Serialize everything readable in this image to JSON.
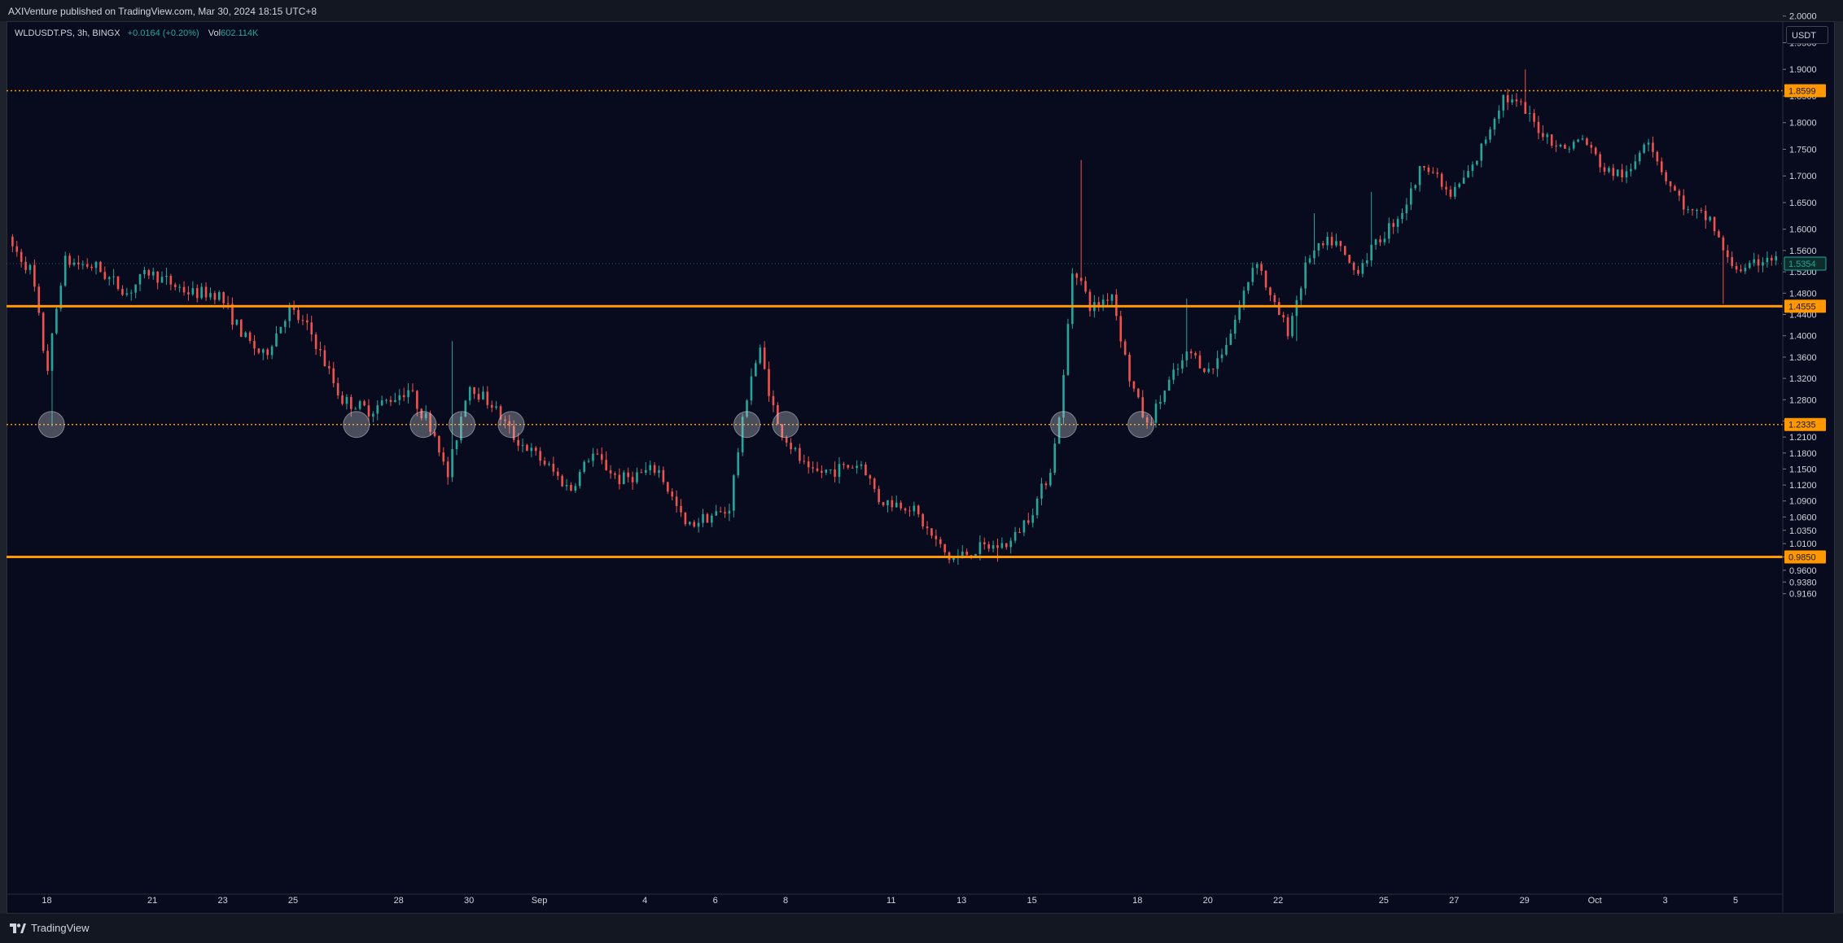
{
  "header": {
    "published_text": "AXIVenture published on TradingView.com, Mar 30, 2024 18:15 UTC+8"
  },
  "legend": {
    "symbol": "WLDUSDT.PS, 3h, BINGX",
    "change": "+0.0164 (+0.20%)",
    "vol_label": "Vol",
    "vol_value": "602.114K"
  },
  "price_scale": {
    "currency": "USDT"
  },
  "footer": {
    "brand": "TradingView"
  },
  "colors": {
    "up": "#26a69a",
    "down": "#ef5350",
    "level": "#ff9800",
    "background": "#070b1d"
  },
  "chart_data": {
    "type": "candlestick",
    "title": "",
    "xlabel": "",
    "ylabel": "",
    "ylim": [
      0.9,
      2.02
    ],
    "y_ticks": [
      "2.0000",
      "1.9500",
      "1.9000",
      "1.8500",
      "1.8000",
      "1.7500",
      "1.7000",
      "1.6500",
      "1.6000",
      "1.5600",
      "1.5200",
      "1.4800",
      "1.4400",
      "1.4000",
      "1.3600",
      "1.3200",
      "1.2800",
      "1.2400",
      "1.2100",
      "1.1800",
      "1.1500",
      "1.1200",
      "1.0900",
      "1.0600",
      "1.0350",
      "1.0100",
      "0.9850",
      "0.9600",
      "0.9380",
      "0.9160"
    ],
    "x_ticks": [
      "18",
      "21",
      "23",
      "25",
      "28",
      "30",
      "Sep",
      "4",
      "6",
      "8",
      "11",
      "13",
      "15",
      "18",
      "20",
      "22",
      "25",
      "27",
      "29",
      "Oct",
      "3",
      "5"
    ],
    "x_tick_day_index": [
      0,
      3,
      5,
      7,
      10,
      12,
      14,
      17,
      19,
      21,
      24,
      26,
      28,
      31,
      33,
      35,
      38,
      40,
      42,
      44,
      46,
      48
    ],
    "day_range": [
      -1.1,
      49.3
    ],
    "horizontal_levels": [
      {
        "value": 1.8599,
        "label": "1.8599",
        "style": "dotted"
      },
      {
        "value": 1.4555,
        "label": "1.4555",
        "style": "solid"
      },
      {
        "value": 1.2335,
        "label": "1.2335",
        "style": "dotted"
      },
      {
        "value": 0.985,
        "label": "0.9850",
        "style": "solid"
      }
    ],
    "last_price": {
      "value": 1.5354,
      "label": "1.5354"
    },
    "touch_markers_day": [
      0.13,
      8.8,
      10.7,
      11.8,
      13.2,
      19.9,
      21.0,
      28.9,
      31.1
    ],
    "touch_markers_price": 1.2335,
    "price_path": [
      {
        "day": -1.0,
        "price": 1.58
      },
      {
        "day": -0.3,
        "price": 1.52
      },
      {
        "day": 0.13,
        "price": 1.33
      },
      {
        "day": 0.6,
        "price": 1.54
      },
      {
        "day": 1.5,
        "price": 1.53
      },
      {
        "day": 2.4,
        "price": 1.48
      },
      {
        "day": 3.0,
        "price": 1.52
      },
      {
        "day": 4.2,
        "price": 1.48
      },
      {
        "day": 5.0,
        "price": 1.48
      },
      {
        "day": 5.7,
        "price": 1.4
      },
      {
        "day": 6.3,
        "price": 1.36
      },
      {
        "day": 7.0,
        "price": 1.45
      },
      {
        "day": 7.6,
        "price": 1.41
      },
      {
        "day": 8.5,
        "price": 1.28
      },
      {
        "day": 9.3,
        "price": 1.26
      },
      {
        "day": 10.4,
        "price": 1.3
      },
      {
        "day": 11.2,
        "price": 1.21
      },
      {
        "day": 11.5,
        "price": 1.13
      },
      {
        "day": 12.1,
        "price": 1.31
      },
      {
        "day": 12.8,
        "price": 1.27
      },
      {
        "day": 13.4,
        "price": 1.21
      },
      {
        "day": 14.3,
        "price": 1.16
      },
      {
        "day": 15.0,
        "price": 1.11
      },
      {
        "day": 15.6,
        "price": 1.18
      },
      {
        "day": 16.4,
        "price": 1.13
      },
      {
        "day": 17.5,
        "price": 1.15
      },
      {
        "day": 18.3,
        "price": 1.04
      },
      {
        "day": 18.8,
        "price": 1.06
      },
      {
        "day": 19.5,
        "price": 1.07
      },
      {
        "day": 20.1,
        "price": 1.32
      },
      {
        "day": 20.4,
        "price": 1.37
      },
      {
        "day": 20.9,
        "price": 1.23
      },
      {
        "day": 21.8,
        "price": 1.14
      },
      {
        "day": 22.6,
        "price": 1.15
      },
      {
        "day": 23.3,
        "price": 1.16
      },
      {
        "day": 23.8,
        "price": 1.09
      },
      {
        "day": 24.7,
        "price": 1.08
      },
      {
        "day": 25.2,
        "price": 1.03
      },
      {
        "day": 25.8,
        "price": 0.98
      },
      {
        "day": 26.6,
        "price": 1.0
      },
      {
        "day": 27.5,
        "price": 1.01
      },
      {
        "day": 28.2,
        "price": 1.08
      },
      {
        "day": 28.7,
        "price": 1.16
      },
      {
        "day": 29.0,
        "price": 1.3
      },
      {
        "day": 29.3,
        "price": 1.54
      },
      {
        "day": 29.8,
        "price": 1.45
      },
      {
        "day": 30.4,
        "price": 1.48
      },
      {
        "day": 30.9,
        "price": 1.32
      },
      {
        "day": 31.4,
        "price": 1.23
      },
      {
        "day": 32.0,
        "price": 1.31
      },
      {
        "day": 32.6,
        "price": 1.37
      },
      {
        "day": 33.2,
        "price": 1.33
      },
      {
        "day": 33.8,
        "price": 1.41
      },
      {
        "day": 34.5,
        "price": 1.55
      },
      {
        "day": 34.9,
        "price": 1.47
      },
      {
        "day": 35.4,
        "price": 1.41
      },
      {
        "day": 36.0,
        "price": 1.55
      },
      {
        "day": 36.7,
        "price": 1.58
      },
      {
        "day": 37.3,
        "price": 1.52
      },
      {
        "day": 38.0,
        "price": 1.58
      },
      {
        "day": 38.7,
        "price": 1.64
      },
      {
        "day": 39.3,
        "price": 1.73
      },
      {
        "day": 40.0,
        "price": 1.66
      },
      {
        "day": 40.7,
        "price": 1.72
      },
      {
        "day": 41.5,
        "price": 1.85
      },
      {
        "day": 42.0,
        "price": 1.83
      },
      {
        "day": 42.5,
        "price": 1.79
      },
      {
        "day": 43.2,
        "price": 1.75
      },
      {
        "day": 43.8,
        "price": 1.77
      },
      {
        "day": 44.4,
        "price": 1.71
      },
      {
        "day": 45.1,
        "price": 1.7
      },
      {
        "day": 45.6,
        "price": 1.78
      },
      {
        "day": 46.1,
        "price": 1.7
      },
      {
        "day": 46.8,
        "price": 1.63
      },
      {
        "day": 47.4,
        "price": 1.62
      },
      {
        "day": 47.9,
        "price": 1.54
      },
      {
        "day": 48.4,
        "price": 1.52
      },
      {
        "day": 49.0,
        "price": 1.55
      },
      {
        "day": 49.3,
        "price": 1.54
      }
    ],
    "spikes": [
      {
        "day": 0.13,
        "low": 1.23
      },
      {
        "day": 11.5,
        "high": 1.39
      },
      {
        "day": 20.4,
        "high": 1.39
      },
      {
        "day": 25.8,
        "low": 0.975
      },
      {
        "day": 27.0,
        "low": 0.976
      },
      {
        "day": 29.4,
        "high": 1.73
      },
      {
        "day": 32.4,
        "high": 1.47
      },
      {
        "day": 35.5,
        "low": 1.39
      },
      {
        "day": 36.0,
        "high": 1.63
      },
      {
        "day": 37.6,
        "high": 1.67
      },
      {
        "day": 42.0,
        "high": 1.9
      },
      {
        "day": 47.6,
        "low": 1.46
      }
    ]
  }
}
